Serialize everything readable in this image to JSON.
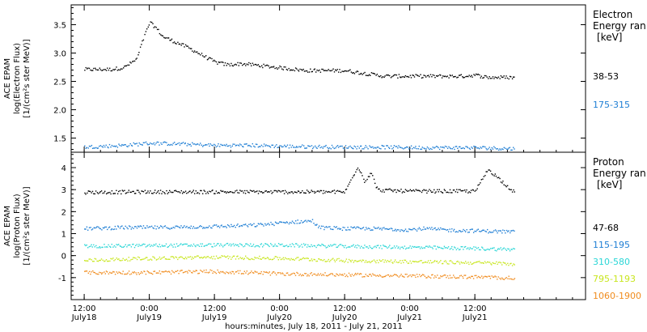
{
  "chart_data": [
    {
      "type": "scatter",
      "title": "",
      "xlabel": "",
      "ylabel_lines": [
        "ACE EPAM",
        "log(Electron Flux)",
        "[1/(cm²s ster MeV)]"
      ],
      "ylim": [
        1.25,
        3.85
      ],
      "yticks": [
        1.5,
        2.0,
        2.5,
        3.0,
        3.5
      ],
      "ytick_labels": [
        "1.5",
        "2.0",
        "2.5",
        "3.0",
        "3.5"
      ],
      "legend_title": [
        "Electron",
        "Energy ran",
        "[keV]"
      ],
      "series": [
        {
          "name": "38-53",
          "color": "#000000",
          "x": [
            18.0,
            18.2,
            18.3,
            18.4,
            18.45,
            18.5,
            18.55,
            18.6,
            18.7,
            18.8,
            19.0,
            19.1,
            19.2,
            19.3,
            19.5,
            19.7,
            20.0,
            20.3,
            20.6,
            20.8,
            20.9,
            21.0,
            21.1,
            21.3
          ],
          "y": [
            2.72,
            2.72,
            2.75,
            2.9,
            3.25,
            3.55,
            3.45,
            3.3,
            3.2,
            3.1,
            2.85,
            2.8,
            2.82,
            2.8,
            2.75,
            2.7,
            2.7,
            2.6,
            2.6,
            2.6,
            2.6,
            2.62,
            2.58,
            2.58
          ]
        },
        {
          "name": "175-315",
          "color": "#1e7ed4",
          "x": [
            18.0,
            18.3,
            18.5,
            18.8,
            19.0,
            19.3,
            19.6,
            20.0,
            20.3,
            20.6,
            21.0,
            21.3
          ],
          "y": [
            1.35,
            1.38,
            1.42,
            1.4,
            1.38,
            1.38,
            1.36,
            1.35,
            1.35,
            1.34,
            1.34,
            1.32
          ]
        }
      ]
    },
    {
      "type": "scatter",
      "title": "",
      "xlabel": "hours:minutes, July 18, 2011 - July 21, 2011",
      "ylabel_lines": [
        "ACE EPAM",
        "log(Proton Flux)",
        "[1/(cm²s ster MeV)]"
      ],
      "ylim": [
        -2.0,
        4.7
      ],
      "yticks": [
        -1,
        0,
        1,
        2,
        3,
        4
      ],
      "ytick_labels": [
        "-1",
        "0",
        "1",
        "2",
        "3",
        "4"
      ],
      "legend_title": [
        "Proton",
        "Energy ran",
        "[keV]"
      ],
      "series": [
        {
          "name": "47-68",
          "color": "#000000",
          "x": [
            18.0,
            18.5,
            19.0,
            19.5,
            20.0,
            20.1,
            20.15,
            20.2,
            20.25,
            20.5,
            21.0,
            21.1,
            21.3
          ],
          "y": [
            2.9,
            2.92,
            2.92,
            2.92,
            2.92,
            4.1,
            3.4,
            3.8,
            3.0,
            2.95,
            2.95,
            3.95,
            2.9
          ]
        },
        {
          "name": "115-195",
          "color": "#1e7ed4",
          "x": [
            18.0,
            18.3,
            18.6,
            19.0,
            19.3,
            19.6,
            19.75,
            19.8,
            20.0,
            20.2,
            20.5,
            20.6,
            20.8,
            21.0,
            21.2,
            21.3
          ],
          "y": [
            1.25,
            1.3,
            1.3,
            1.35,
            1.4,
            1.55,
            1.6,
            1.3,
            1.25,
            1.25,
            1.2,
            1.25,
            1.18,
            1.15,
            1.12,
            1.1
          ]
        },
        {
          "name": "310-580",
          "color": "#2ad6d6",
          "x": [
            18.0,
            18.5,
            19.0,
            19.5,
            20.0,
            20.5,
            21.0,
            21.3
          ],
          "y": [
            0.45,
            0.48,
            0.5,
            0.5,
            0.45,
            0.4,
            0.35,
            0.3
          ]
        },
        {
          "name": "795-1193",
          "color": "#c8e61e",
          "x": [
            18.0,
            18.5,
            19.0,
            19.5,
            20.0,
            20.5,
            21.0,
            21.3
          ],
          "y": [
            -0.2,
            -0.1,
            -0.05,
            -0.1,
            -0.2,
            -0.25,
            -0.3,
            -0.35
          ]
        },
        {
          "name": "1060-1900",
          "color": "#f08c1e",
          "x": [
            18.0,
            18.5,
            19.0,
            19.5,
            20.0,
            20.5,
            21.0,
            21.3
          ],
          "y": [
            -0.75,
            -0.75,
            -0.7,
            -0.8,
            -0.85,
            -0.9,
            -0.95,
            -1.0
          ]
        }
      ]
    }
  ],
  "xaxis": {
    "xlim": [
      17.9,
      21.85
    ],
    "ticks": [
      {
        "x": 18.0,
        "line1": "12:00",
        "line2": "July18"
      },
      {
        "x": 18.5,
        "line1": "0:00",
        "line2": "July19"
      },
      {
        "x": 19.0,
        "line1": "12:00",
        "line2": "July19"
      },
      {
        "x": 19.5,
        "line1": "0:00",
        "line2": "July20"
      },
      {
        "x": 20.0,
        "line1": "12:00",
        "line2": "July20"
      },
      {
        "x": 20.5,
        "line1": "0:00",
        "line2": "July21"
      },
      {
        "x": 21.0,
        "line1": "12:00",
        "line2": "July21"
      }
    ],
    "label": "hours:minutes, July 18, 2011 - July 21, 2011"
  }
}
